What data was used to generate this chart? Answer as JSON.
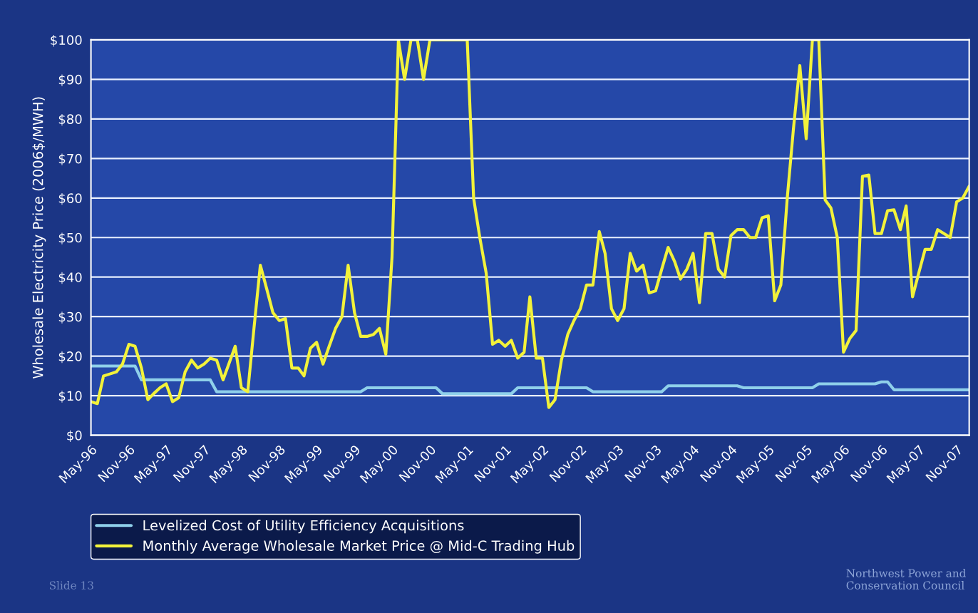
{
  "chart_data": {
    "type": "line",
    "ylabel": "Wholesale Electricity Price (2006$/MWH)",
    "x": [
      "1996-05",
      "1996-06",
      "1996-07",
      "1996-08",
      "1996-09",
      "1996-10",
      "1996-11",
      "1996-12",
      "1997-01",
      "1997-02",
      "1997-03",
      "1997-04",
      "1997-05",
      "1997-06",
      "1997-07",
      "1997-08",
      "1997-09",
      "1997-10",
      "1997-11",
      "1997-12",
      "1998-01",
      "1998-02",
      "1998-03",
      "1998-04",
      "1998-05",
      "1998-06",
      "1998-07",
      "1998-08",
      "1998-09",
      "1998-10",
      "1998-11",
      "1998-12",
      "1999-01",
      "1999-02",
      "1999-03",
      "1999-04",
      "1999-05",
      "1999-06",
      "1999-07",
      "1999-08",
      "1999-09",
      "1999-10",
      "1999-11",
      "1999-12",
      "2000-01",
      "2000-02",
      "2000-03",
      "2000-04",
      "2000-05",
      "2000-06",
      "2000-07",
      "2000-08",
      "2000-09",
      "2000-10",
      "2000-11",
      "2000-12",
      "2001-01",
      "2001-02",
      "2001-03",
      "2001-04",
      "2001-05",
      "2001-06",
      "2001-07",
      "2001-08",
      "2001-09",
      "2001-10",
      "2001-11",
      "2001-12",
      "2002-01",
      "2002-02",
      "2002-03",
      "2002-04",
      "2002-05",
      "2002-06",
      "2002-07",
      "2002-08",
      "2002-09",
      "2002-10",
      "2002-11",
      "2002-12",
      "2003-01",
      "2003-02",
      "2003-03",
      "2003-04",
      "2003-05",
      "2003-06",
      "2003-07",
      "2003-08",
      "2003-09",
      "2003-10",
      "2003-11",
      "2003-12",
      "2004-01",
      "2004-02",
      "2004-03",
      "2004-04",
      "2004-05",
      "2004-06",
      "2004-07",
      "2004-08",
      "2004-09",
      "2004-10",
      "2004-11",
      "2004-12",
      "2005-01",
      "2005-02",
      "2005-03",
      "2005-04",
      "2005-05",
      "2005-06",
      "2005-07",
      "2005-08",
      "2005-09",
      "2005-10",
      "2005-11",
      "2005-12",
      "2006-01",
      "2006-02",
      "2006-03",
      "2006-04",
      "2006-05",
      "2006-06",
      "2006-07",
      "2006-08",
      "2006-09",
      "2006-10",
      "2006-11",
      "2006-12",
      "2007-01",
      "2007-02",
      "2007-03",
      "2007-04",
      "2007-05",
      "2007-06",
      "2007-07",
      "2007-08",
      "2007-09",
      "2007-10",
      "2007-11",
      "2007-12",
      "2008-01"
    ],
    "xlim": [
      "1996-05",
      "2008-01"
    ],
    "xticks": [
      {
        "value": "1996-05",
        "label": "May-96"
      },
      {
        "value": "1996-11",
        "label": "Nov-96"
      },
      {
        "value": "1997-05",
        "label": "May-97"
      },
      {
        "value": "1997-11",
        "label": "Nov-97"
      },
      {
        "value": "1998-05",
        "label": "May-98"
      },
      {
        "value": "1998-11",
        "label": "Nov-98"
      },
      {
        "value": "1999-05",
        "label": "May-99"
      },
      {
        "value": "1999-11",
        "label": "Nov-99"
      },
      {
        "value": "2000-05",
        "label": "May-00"
      },
      {
        "value": "2000-11",
        "label": "Nov-00"
      },
      {
        "value": "2001-05",
        "label": "May-01"
      },
      {
        "value": "2001-11",
        "label": "Nov-01"
      },
      {
        "value": "2002-05",
        "label": "May-02"
      },
      {
        "value": "2002-11",
        "label": "Nov-02"
      },
      {
        "value": "2003-05",
        "label": "May-03"
      },
      {
        "value": "2003-11",
        "label": "Nov-03"
      },
      {
        "value": "2004-05",
        "label": "May-04"
      },
      {
        "value": "2004-11",
        "label": "Nov-04"
      },
      {
        "value": "2005-05",
        "label": "May-05"
      },
      {
        "value": "2005-11",
        "label": "Nov-05"
      },
      {
        "value": "2006-05",
        "label": "May-06"
      },
      {
        "value": "2006-11",
        "label": "Nov-06"
      },
      {
        "value": "2007-05",
        "label": "May-07"
      },
      {
        "value": "2007-11",
        "label": "Nov-07"
      }
    ],
    "ylim": [
      0,
      100
    ],
    "yticks": [
      {
        "value": 0,
        "label": "$0"
      },
      {
        "value": 10,
        "label": "$10"
      },
      {
        "value": 20,
        "label": "$20"
      },
      {
        "value": 30,
        "label": "$30"
      },
      {
        "value": 40,
        "label": "$40"
      },
      {
        "value": 50,
        "label": "$50"
      },
      {
        "value": 60,
        "label": "$60"
      },
      {
        "value": 70,
        "label": "$70"
      },
      {
        "value": 80,
        "label": "$80"
      },
      {
        "value": 90,
        "label": "$90"
      },
      {
        "value": 100,
        "label": "$100"
      }
    ],
    "grid": "y",
    "legend": "bottom",
    "line_style": "solid",
    "series": [
      {
        "name": "Levelized Cost of Utility Efficiency Acquisitions",
        "color": "#8fd0ea",
        "values": [
          17.5,
          17.5,
          17.5,
          17.5,
          17.5,
          17.5,
          17.5,
          17.5,
          14,
          14,
          14,
          14,
          14,
          14,
          14,
          14,
          14,
          14,
          14,
          14,
          11,
          11,
          11,
          11,
          11,
          11,
          11,
          11,
          11,
          11,
          11,
          11,
          11,
          11,
          11,
          11,
          11,
          11,
          11,
          11,
          11,
          11,
          11,
          11,
          12,
          12,
          12,
          12,
          12,
          12,
          12,
          12,
          12,
          12,
          12,
          12,
          10.5,
          10.5,
          10.5,
          10.5,
          10.5,
          10.5,
          10.5,
          10.5,
          10.5,
          10.5,
          10.5,
          10.5,
          12,
          12,
          12,
          12,
          12,
          12,
          12,
          12,
          12,
          12,
          12,
          12,
          11,
          11,
          11,
          11,
          11,
          11,
          11,
          11,
          11,
          11,
          11,
          11,
          12.5,
          12.5,
          12.5,
          12.5,
          12.5,
          12.5,
          12.5,
          12.5,
          12.5,
          12.5,
          12.5,
          12.5,
          12,
          12,
          12,
          12,
          12,
          12,
          12,
          12,
          12,
          12,
          12,
          12,
          13,
          13,
          13,
          13,
          13,
          13,
          13,
          13,
          13,
          13,
          13.5,
          13.5,
          11.5,
          11.5,
          11.5,
          11.5,
          11.5,
          11.5,
          11.5,
          11.5,
          11.5,
          11.5,
          11.5,
          11.5,
          11.5
        ]
      },
      {
        "name": "Monthly Average Wholesale Market Price @ Mid-C Trading Hub",
        "color": "#f2f23a",
        "values": [
          8.5,
          8,
          15,
          15.5,
          16,
          18,
          23,
          22.5,
          17,
          9,
          10.5,
          12,
          13,
          8.5,
          9.5,
          16,
          19,
          17,
          18,
          19.5,
          19,
          14,
          18,
          22.5,
          12,
          11,
          27,
          43,
          37,
          31,
          29,
          29.5,
          17,
          17,
          15,
          22,
          23.5,
          18,
          22.5,
          27,
          30,
          43,
          31,
          25,
          25,
          25.5,
          27,
          20.5,
          45,
          100,
          90,
          100,
          100,
          90,
          100,
          100,
          100,
          100,
          100,
          100,
          100,
          60,
          50,
          41,
          23,
          24,
          22.5,
          24,
          19.5,
          21,
          35,
          19.5,
          19.5,
          7,
          9,
          19,
          25.5,
          29,
          32,
          38,
          38,
          51.5,
          46,
          32,
          29,
          32,
          46,
          41.5,
          43,
          36,
          36.5,
          42,
          47.5,
          44,
          39.5,
          42,
          46,
          33.5,
          51,
          51,
          42,
          40,
          50.5,
          52,
          52,
          50,
          50,
          55,
          55.5,
          34,
          38,
          60,
          78,
          93.5,
          75,
          100,
          100,
          59.5,
          57.5,
          50,
          21,
          24.5,
          26.5,
          65.5,
          65.8,
          51,
          51,
          56.8,
          57,
          52,
          58,
          35,
          41,
          47,
          47,
          52,
          51,
          50,
          59,
          60,
          63
        ]
      }
    ],
    "annotations": [
      "Slide 13",
      "Northwest Power and Conservation Council"
    ]
  }
}
